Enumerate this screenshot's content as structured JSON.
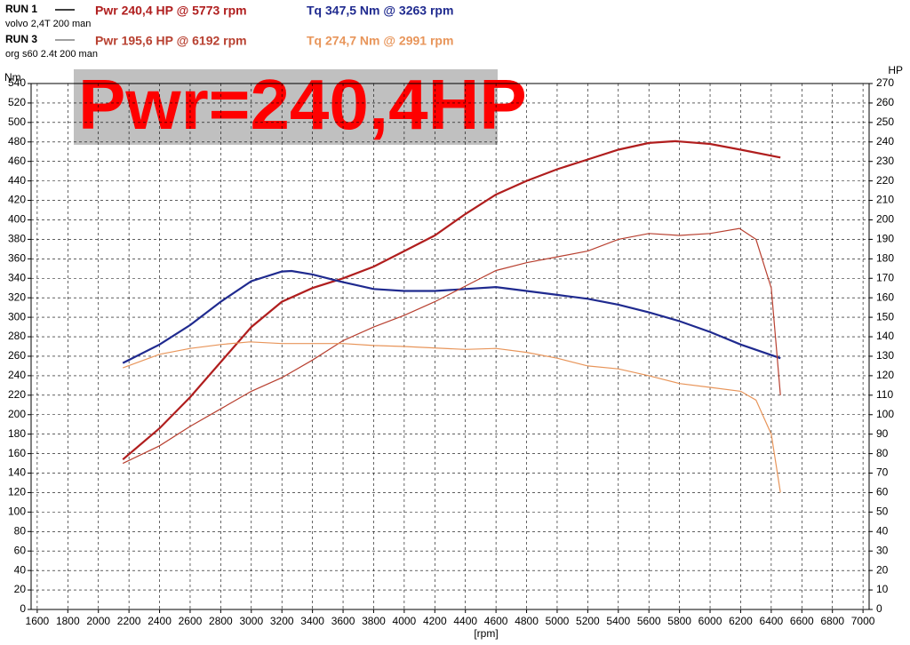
{
  "chart_data": {
    "type": "line",
    "runs": [
      {
        "label": "RUN 1",
        "description": "volvo 2,4T 200 man"
      },
      {
        "label": "RUN 3",
        "description": "org s60 2.4t 200 man"
      }
    ],
    "annotation": "Pwr=240,4HP",
    "ylabel": "Nm",
    "y2label": "HP",
    "xlabel": "[rpm]",
    "xlim": [
      1560,
      7040
    ],
    "ylim": [
      0,
      540
    ],
    "y2lim": [
      0,
      270
    ],
    "grid": true,
    "xticks": [
      1600,
      1800,
      2000,
      2200,
      2400,
      2600,
      2800,
      3000,
      3200,
      3400,
      3600,
      3800,
      4000,
      4200,
      4400,
      4600,
      4800,
      5000,
      5200,
      5400,
      5600,
      5800,
      6000,
      6200,
      6400,
      6600,
      6800,
      7000
    ],
    "yticks": [
      0,
      20,
      40,
      60,
      80,
      100,
      120,
      140,
      160,
      180,
      200,
      220,
      240,
      260,
      280,
      300,
      320,
      340,
      360,
      380,
      400,
      420,
      440,
      460,
      480,
      500,
      520,
      540
    ],
    "y2ticks": [
      0,
      10,
      20,
      30,
      40,
      50,
      60,
      70,
      80,
      90,
      100,
      110,
      120,
      130,
      140,
      150,
      160,
      170,
      180,
      190,
      200,
      210,
      220,
      230,
      240,
      250,
      260,
      270
    ],
    "series": [
      {
        "name": "Pwr  240,4 HP @ 5773 rpm",
        "color": "#b01e1e",
        "axis": "y2",
        "run": 0,
        "x": [
          2160,
          2400,
          2600,
          2800,
          3000,
          3200,
          3400,
          3600,
          3800,
          4000,
          4200,
          4400,
          4600,
          4800,
          5000,
          5200,
          5400,
          5600,
          5773,
          6000,
          6200,
          6460
        ],
        "values": [
          77,
          93,
          109,
          127,
          145,
          158,
          165,
          170,
          176,
          184,
          192,
          203,
          213,
          220,
          226,
          231,
          236,
          239.5,
          240.4,
          239,
          236,
          232
        ]
      },
      {
        "name": "Tq 347,5 Nm @ 3263 rpm",
        "color": "#1f2a8f",
        "run": 0,
        "x": [
          2160,
          2400,
          2600,
          2800,
          3000,
          3200,
          3263,
          3400,
          3600,
          3800,
          4000,
          4200,
          4400,
          4600,
          4800,
          5000,
          5200,
          5400,
          5600,
          5800,
          6000,
          6200,
          6460
        ],
        "values": [
          253,
          272,
          292,
          316,
          337,
          347,
          347.5,
          344,
          336,
          329,
          327,
          327,
          329,
          331,
          327,
          323,
          319,
          313,
          305,
          296,
          285,
          272,
          258
        ]
      },
      {
        "name": "Pwr  195,6 HP @ 6192 rpm",
        "color": "#b84030",
        "axis": "y2",
        "run": 1,
        "x": [
          2160,
          2400,
          2600,
          2800,
          3000,
          3200,
          3400,
          3600,
          3800,
          4000,
          4200,
          4400,
          4600,
          4800,
          5000,
          5200,
          5400,
          5600,
          5800,
          6000,
          6192,
          6300,
          6400,
          6460
        ],
        "values": [
          75,
          84,
          94,
          103,
          112,
          119,
          128,
          138,
          145,
          151,
          158,
          166,
          174,
          178,
          181,
          184,
          190,
          193,
          192,
          193,
          195.6,
          190,
          165,
          110
        ]
      },
      {
        "name": "Tq 274,7 Nm @ 2991 rpm",
        "color": "#e8955a",
        "run": 1,
        "x": [
          2160,
          2400,
          2600,
          2800,
          2991,
          3200,
          3600,
          3800,
          4000,
          4400,
          4600,
          4800,
          5000,
          5200,
          5400,
          5600,
          5800,
          6000,
          6200,
          6300,
          6400,
          6460
        ],
        "values": [
          248,
          262,
          268,
          272,
          274.7,
          273,
          273,
          271,
          270,
          267,
          268,
          264,
          258,
          250,
          247,
          240,
          232,
          228,
          224,
          215,
          180,
          120
        ]
      }
    ]
  }
}
